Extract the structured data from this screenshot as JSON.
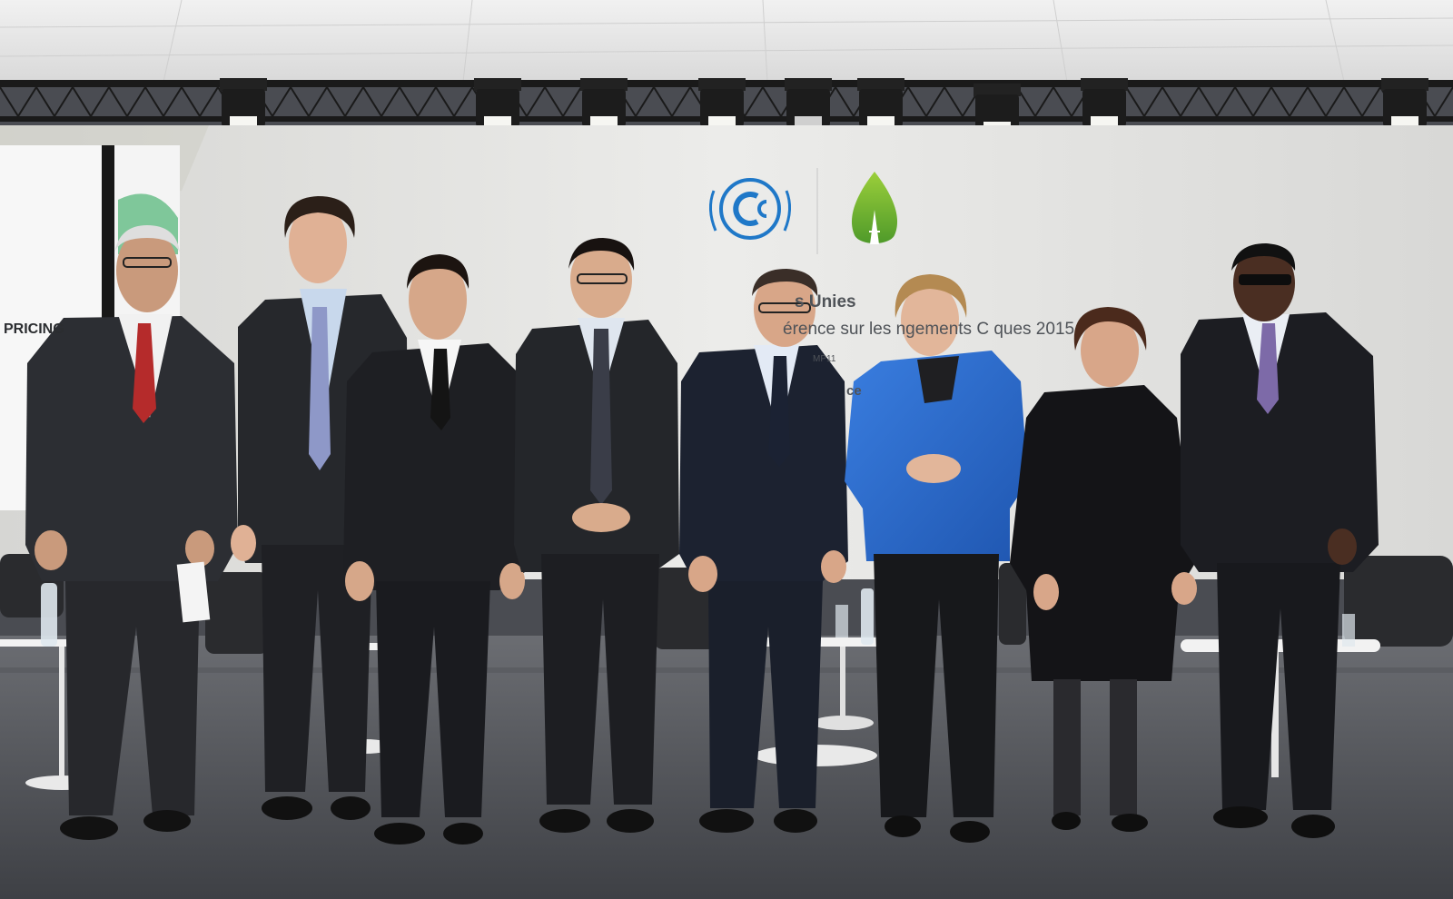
{
  "backdrop": {
    "title_fragment": "s Unies",
    "subtitle_fragment": "érence sur les   ngements C   ques 2015",
    "code_fragment": "MP11",
    "partial_word": "ce"
  },
  "screen": {
    "text_fragment": "PRICING"
  },
  "colors": {
    "backdrop_wall": "#e6e6e4",
    "stage_floor": "#5a5c60",
    "blazer_blue": "#2f6fd1",
    "unfccc_blue": "#1f78c8",
    "cop21_green": "#7ab733",
    "truss_black": "#1a1a1a"
  }
}
